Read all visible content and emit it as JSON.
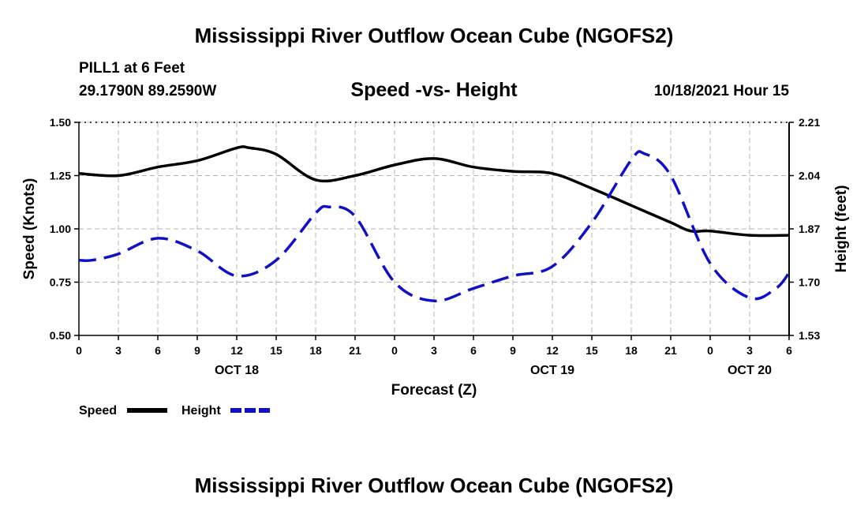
{
  "header": {
    "title": "Mississippi River Outflow Ocean Cube (NGOFS2)",
    "station": "PILL1 at 6 Feet",
    "coords": "29.1790N  89.2590W",
    "subtitle": "Speed -vs- Height",
    "datetime": "10/18/2021 Hour 15"
  },
  "footer": {
    "title": "Mississippi River Outflow Ocean Cube (NGOFS2)"
  },
  "colors": {
    "speed": "#000000",
    "height": "#1010c8",
    "grid": "#b4b4b4"
  },
  "chart_data": {
    "type": "line",
    "title": "Speed -vs- Height",
    "xlabel": "Forecast (Z)",
    "ylabel": "Speed (Knots)",
    "y2label": "Height (feet)",
    "xlim": [
      0,
      54
    ],
    "ylim": [
      0.5,
      1.5
    ],
    "y2lim": [
      1.53,
      2.21
    ],
    "x_tick_values": [
      0,
      3,
      6,
      9,
      12,
      15,
      18,
      21,
      24,
      27,
      30,
      33,
      36,
      39,
      42,
      45,
      48,
      51,
      54
    ],
    "x_tick_labels": [
      "0",
      "3",
      "6",
      "9",
      "12",
      "15",
      "18",
      "21",
      "0",
      "3",
      "6",
      "9",
      "12",
      "15",
      "18",
      "21",
      "0",
      "3",
      "6"
    ],
    "date_labels": [
      {
        "x": 12,
        "label": "OCT 18"
      },
      {
        "x": 36,
        "label": "OCT 19"
      },
      {
        "x": 51,
        "label": "OCT 20"
      }
    ],
    "y_ticks": [
      "1.50",
      "1.25",
      "1.00",
      "0.75",
      "0.50"
    ],
    "y_tick_values": [
      1.5,
      1.25,
      1.0,
      0.75,
      0.5
    ],
    "y2_ticks": [
      "2.21",
      "2.04",
      "1.87",
      "1.70",
      "1.53"
    ],
    "y2_tick_values": [
      2.21,
      2.04,
      1.87,
      1.7,
      1.53
    ],
    "grid": true,
    "series": [
      {
        "name": "Speed",
        "axis": "left",
        "style": "solid",
        "x": [
          0,
          3,
          6,
          9,
          12,
          13,
          15,
          18,
          21,
          24,
          27,
          30,
          33,
          36,
          39,
          42,
          45,
          46.5,
          48,
          51,
          54
        ],
        "values": [
          1.26,
          1.25,
          1.29,
          1.32,
          1.38,
          1.38,
          1.35,
          1.23,
          1.25,
          1.3,
          1.33,
          1.29,
          1.27,
          1.26,
          1.19,
          1.11,
          1.03,
          0.99,
          0.99,
          0.97,
          0.97
        ]
      },
      {
        "name": "Height",
        "axis": "right",
        "style": "dashed",
        "x": [
          0,
          1,
          3,
          6,
          9,
          12,
          15,
          18,
          19,
          21,
          24,
          27,
          30,
          33,
          36,
          39,
          42,
          43,
          45,
          48,
          51,
          53,
          54
        ],
        "values": [
          1.77,
          1.77,
          1.79,
          1.84,
          1.8,
          1.72,
          1.77,
          1.92,
          1.94,
          1.91,
          1.7,
          1.64,
          1.68,
          1.72,
          1.75,
          1.89,
          2.09,
          2.11,
          2.04,
          1.76,
          1.65,
          1.68,
          1.73
        ]
      }
    ],
    "legend": [
      {
        "label": "Speed",
        "series": "Speed"
      },
      {
        "label": "Height",
        "series": "Height"
      }
    ],
    "legend_position": "bottom-left"
  }
}
